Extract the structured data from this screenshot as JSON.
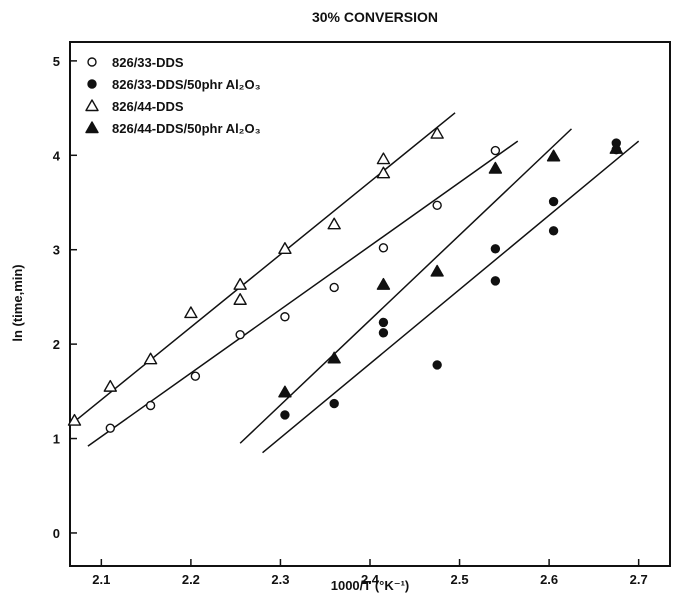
{
  "chart_data": {
    "type": "scatter",
    "title": "30% CONVERSION",
    "xlabel": "1000/T (°K⁻¹)",
    "ylabel": "ln (time,min)",
    "xlim": [
      2.065,
      2.735
    ],
    "ylim": [
      -0.35,
      5.2
    ],
    "xticks": [
      2.1,
      2.2,
      2.3,
      2.4,
      2.5,
      2.6,
      2.7
    ],
    "yticks": [
      0,
      1,
      2,
      3,
      4,
      5
    ],
    "grid": false,
    "legend_position": "top-left",
    "series": [
      {
        "name": "826/33-DDS",
        "marker": "circle-open",
        "points": [
          [
            2.11,
            1.11
          ],
          [
            2.155,
            1.35
          ],
          [
            2.205,
            1.66
          ],
          [
            2.255,
            2.1
          ],
          [
            2.305,
            2.29
          ],
          [
            2.36,
            2.6
          ],
          [
            2.415,
            3.02
          ],
          [
            2.475,
            3.47
          ],
          [
            2.54,
            4.05
          ]
        ],
        "fit": [
          [
            2.085,
            0.92
          ],
          [
            2.565,
            4.15
          ]
        ]
      },
      {
        "name": "826/33-DDS/50phr Al₂O₃",
        "marker": "circle-filled",
        "points": [
          [
            2.305,
            1.25
          ],
          [
            2.36,
            1.37
          ],
          [
            2.415,
            2.12
          ],
          [
            2.415,
            2.23
          ],
          [
            2.475,
            1.78
          ],
          [
            2.54,
            2.67
          ],
          [
            2.54,
            3.01
          ],
          [
            2.605,
            3.2
          ],
          [
            2.605,
            3.51
          ],
          [
            2.675,
            4.06
          ],
          [
            2.675,
            4.13
          ]
        ],
        "fit": [
          [
            2.28,
            0.85
          ],
          [
            2.7,
            4.15
          ]
        ]
      },
      {
        "name": "826/44-DDS",
        "marker": "triangle-open",
        "points": [
          [
            2.07,
            1.19
          ],
          [
            2.11,
            1.55
          ],
          [
            2.155,
            1.84
          ],
          [
            2.2,
            2.33
          ],
          [
            2.255,
            2.47
          ],
          [
            2.255,
            2.63
          ],
          [
            2.305,
            3.01
          ],
          [
            2.36,
            3.27
          ],
          [
            2.415,
            3.81
          ],
          [
            2.415,
            3.96
          ],
          [
            2.475,
            4.23
          ]
        ],
        "fit": [
          [
            2.07,
            1.18
          ],
          [
            2.495,
            4.45
          ]
        ]
      },
      {
        "name": "826/44-DDS/50phr Al₂O₃",
        "marker": "triangle-filled",
        "points": [
          [
            2.305,
            1.49
          ],
          [
            2.36,
            1.85
          ],
          [
            2.415,
            2.63
          ],
          [
            2.475,
            2.77
          ],
          [
            2.54,
            3.86
          ],
          [
            2.605,
            3.99
          ],
          [
            2.675,
            4.07
          ]
        ],
        "fit": [
          [
            2.255,
            0.95
          ],
          [
            2.625,
            4.28
          ]
        ]
      }
    ]
  }
}
